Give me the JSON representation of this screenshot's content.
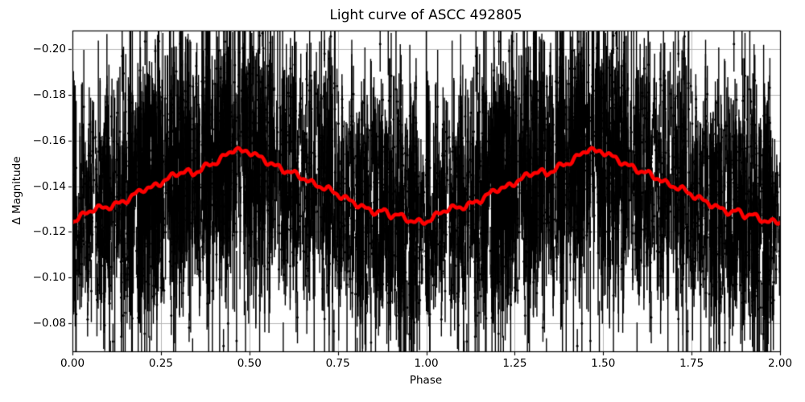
{
  "chart_data": {
    "type": "scatter",
    "title": "Light curve of ASCC 492805",
    "xlabel": "Phase",
    "ylabel": "Δ Magnitude",
    "xlim": [
      0.0,
      2.0
    ],
    "ylim": [
      -0.0677,
      -0.2081
    ],
    "y_axis_inverted": true,
    "grid": true,
    "x_ticks": [
      0.0,
      0.25,
      0.5,
      0.75,
      1.0,
      1.25,
      1.5,
      1.75,
      2.0
    ],
    "x_tick_labels": [
      "0.00",
      "0.25",
      "0.50",
      "0.75",
      "1.00",
      "1.25",
      "1.50",
      "1.75",
      "2.00"
    ],
    "y_ticks": [
      -0.2,
      -0.18,
      -0.16,
      -0.14,
      -0.12,
      -0.1,
      -0.08
    ],
    "y_tick_labels": [
      "−0.20",
      "−0.18",
      "−0.16",
      "−0.14",
      "−0.12",
      "−0.10",
      "−0.08"
    ],
    "colors": {
      "background": "#ffffff",
      "scatter": "#000000",
      "smoothed_curve": "#ff0000",
      "grid": "#b0b0b0",
      "spine": "#000000",
      "text": "#000000"
    },
    "series": [
      {
        "name": "photometric observations with error bars",
        "type": "errorbar-scatter",
        "color": "#000000",
        "plotted_cycles": 2,
        "generator": {
          "seed": 20,
          "n_per_cycle": 2300,
          "cluster_fraction": 0.35,
          "n_clusters": 48,
          "cluster_sigma": 0.003,
          "y_sigma": 0.021,
          "outlier_fraction": 0.07,
          "outlier_sigma": 0.045,
          "err_base": 0.005,
          "err_scale": 0.012,
          "err_cap": 0.065,
          "marker_radius": 1.5,
          "bar_linewidth": 1.4
        }
      },
      {
        "name": "smoothed (running-average) light curve",
        "type": "line",
        "color": "#ff0000",
        "linewidth": 4.6,
        "plotted_cycles": 2,
        "profile_phase_step": 0.02,
        "profile_peak": {
          "phase": 0.45,
          "dmag": -0.157
        },
        "profile_minimum": {
          "phase": 1.0,
          "dmag": -0.124
        },
        "profile_dmag": [
          -0.1245,
          -0.1262,
          -0.1285,
          -0.13,
          -0.1305,
          -0.1308,
          -0.1318,
          -0.133,
          -0.1345,
          -0.1368,
          -0.1388,
          -0.1392,
          -0.1405,
          -0.1425,
          -0.1442,
          -0.1458,
          -0.1466,
          -0.1452,
          -0.1472,
          -0.1489,
          -0.15,
          -0.152,
          -0.1542,
          -0.1567,
          -0.1548,
          -0.1552,
          -0.1536,
          -0.1514,
          -0.1501,
          -0.1483,
          -0.1468,
          -0.1462,
          -0.1443,
          -0.1431,
          -0.1409,
          -0.1399,
          -0.139,
          -0.1372,
          -0.1355,
          -0.134,
          -0.1325,
          -0.1308,
          -0.1295,
          -0.1285,
          -0.1292,
          -0.1272,
          -0.1276,
          -0.1258,
          -0.1248,
          -0.1242,
          -0.1243
        ],
        "wiggle": {
          "amp1": 0.0009,
          "freq1_cycles": 20,
          "phase1": 1.2,
          "amp2": 0.0006,
          "freq2_cycles": 43,
          "phase2": 3.9
        }
      }
    ]
  }
}
